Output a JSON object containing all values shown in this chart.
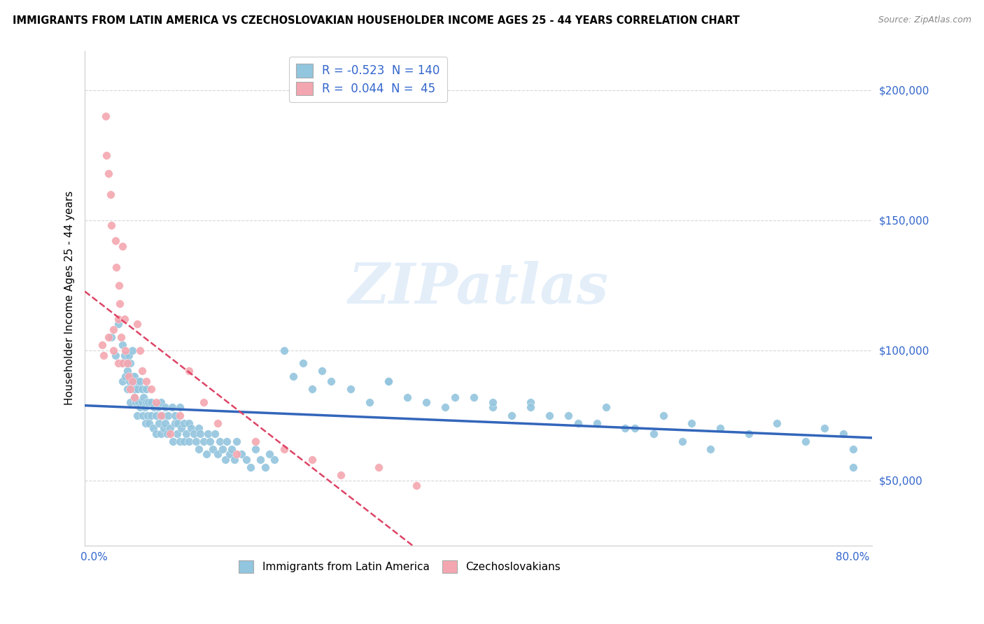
{
  "title": "IMMIGRANTS FROM LATIN AMERICA VS CZECHOSLOVAKIAN HOUSEHOLDER INCOME AGES 25 - 44 YEARS CORRELATION CHART",
  "source": "Source: ZipAtlas.com",
  "ylabel": "Householder Income Ages 25 - 44 years",
  "xlim": [
    -0.01,
    0.82
  ],
  "ylim": [
    25000,
    215000
  ],
  "yticks": [
    50000,
    100000,
    150000,
    200000
  ],
  "ytick_labels": [
    "$50,000",
    "$100,000",
    "$150,000",
    "$200,000"
  ],
  "xticks": [
    0.0,
    0.1,
    0.2,
    0.3,
    0.4,
    0.5,
    0.6,
    0.7,
    0.8
  ],
  "xtick_labels": [
    "0.0%",
    "",
    "",
    "",
    "",
    "",
    "",
    "",
    "80.0%"
  ],
  "blue_R": "-0.523",
  "blue_N": "140",
  "pink_R": "0.044",
  "pink_N": "45",
  "blue_color": "#92C5DE",
  "pink_color": "#F4A6B0",
  "blue_line_color": "#3366BB",
  "pink_line_color": "#DD4466",
  "grid_color": "#CCCCCC",
  "legend_label_blue": "Immigrants from Latin America",
  "legend_label_pink": "Czechoslovakians",
  "blue_scatter_x": [
    0.018,
    0.022,
    0.025,
    0.028,
    0.03,
    0.03,
    0.032,
    0.033,
    0.034,
    0.035,
    0.035,
    0.036,
    0.037,
    0.038,
    0.038,
    0.04,
    0.04,
    0.04,
    0.041,
    0.042,
    0.042,
    0.043,
    0.044,
    0.045,
    0.045,
    0.046,
    0.047,
    0.048,
    0.048,
    0.05,
    0.05,
    0.051,
    0.052,
    0.053,
    0.054,
    0.055,
    0.055,
    0.056,
    0.057,
    0.058,
    0.06,
    0.06,
    0.062,
    0.063,
    0.065,
    0.065,
    0.067,
    0.068,
    0.07,
    0.07,
    0.072,
    0.073,
    0.075,
    0.075,
    0.077,
    0.078,
    0.08,
    0.082,
    0.083,
    0.085,
    0.085,
    0.087,
    0.088,
    0.09,
    0.09,
    0.092,
    0.095,
    0.095,
    0.097,
    0.1,
    0.1,
    0.102,
    0.105,
    0.107,
    0.11,
    0.11,
    0.112,
    0.115,
    0.118,
    0.12,
    0.122,
    0.125,
    0.127,
    0.13,
    0.132,
    0.135,
    0.138,
    0.14,
    0.143,
    0.145,
    0.148,
    0.15,
    0.155,
    0.16,
    0.165,
    0.17,
    0.175,
    0.18,
    0.185,
    0.19,
    0.2,
    0.21,
    0.22,
    0.23,
    0.24,
    0.25,
    0.27,
    0.29,
    0.31,
    0.33,
    0.35,
    0.37,
    0.4,
    0.42,
    0.44,
    0.46,
    0.48,
    0.51,
    0.54,
    0.57,
    0.6,
    0.63,
    0.66,
    0.69,
    0.72,
    0.75,
    0.77,
    0.79,
    0.8,
    0.8,
    0.31,
    0.38,
    0.42,
    0.46,
    0.5,
    0.53,
    0.56,
    0.59,
    0.62,
    0.65
  ],
  "blue_scatter_y": [
    105000,
    98000,
    110000,
    95000,
    102000,
    88000,
    98000,
    90000,
    95000,
    85000,
    92000,
    98000,
    88000,
    95000,
    80000,
    100000,
    85000,
    90000,
    88000,
    82000,
    90000,
    85000,
    80000,
    88000,
    75000,
    85000,
    80000,
    88000,
    78000,
    85000,
    80000,
    75000,
    82000,
    78000,
    72000,
    80000,
    85000,
    75000,
    80000,
    72000,
    80000,
    75000,
    70000,
    78000,
    75000,
    68000,
    78000,
    72000,
    80000,
    68000,
    75000,
    70000,
    78000,
    72000,
    68000,
    75000,
    70000,
    78000,
    65000,
    72000,
    75000,
    68000,
    72000,
    78000,
    65000,
    70000,
    72000,
    65000,
    68000,
    72000,
    65000,
    70000,
    68000,
    65000,
    70000,
    62000,
    68000,
    65000,
    60000,
    68000,
    65000,
    62000,
    68000,
    60000,
    65000,
    62000,
    58000,
    65000,
    60000,
    62000,
    58000,
    65000,
    60000,
    58000,
    55000,
    62000,
    58000,
    55000,
    60000,
    58000,
    100000,
    90000,
    95000,
    85000,
    92000,
    88000,
    85000,
    80000,
    88000,
    82000,
    80000,
    78000,
    82000,
    78000,
    75000,
    80000,
    75000,
    72000,
    78000,
    70000,
    75000,
    72000,
    70000,
    68000,
    72000,
    65000,
    70000,
    68000,
    55000,
    62000,
    88000,
    82000,
    80000,
    78000,
    75000,
    72000,
    70000,
    68000,
    65000,
    62000
  ],
  "pink_scatter_x": [
    0.008,
    0.01,
    0.012,
    0.013,
    0.015,
    0.015,
    0.017,
    0.018,
    0.02,
    0.02,
    0.022,
    0.023,
    0.025,
    0.025,
    0.026,
    0.027,
    0.028,
    0.03,
    0.03,
    0.032,
    0.033,
    0.035,
    0.036,
    0.038,
    0.04,
    0.042,
    0.045,
    0.048,
    0.05,
    0.055,
    0.06,
    0.065,
    0.07,
    0.08,
    0.09,
    0.1,
    0.115,
    0.13,
    0.15,
    0.17,
    0.2,
    0.23,
    0.26,
    0.3,
    0.34
  ],
  "pink_scatter_y": [
    102000,
    98000,
    190000,
    175000,
    168000,
    105000,
    160000,
    148000,
    108000,
    100000,
    142000,
    132000,
    112000,
    95000,
    125000,
    118000,
    105000,
    140000,
    95000,
    112000,
    100000,
    95000,
    90000,
    85000,
    88000,
    82000,
    110000,
    100000,
    92000,
    88000,
    85000,
    80000,
    75000,
    68000,
    75000,
    92000,
    80000,
    72000,
    60000,
    65000,
    62000,
    58000,
    52000,
    55000,
    48000
  ]
}
